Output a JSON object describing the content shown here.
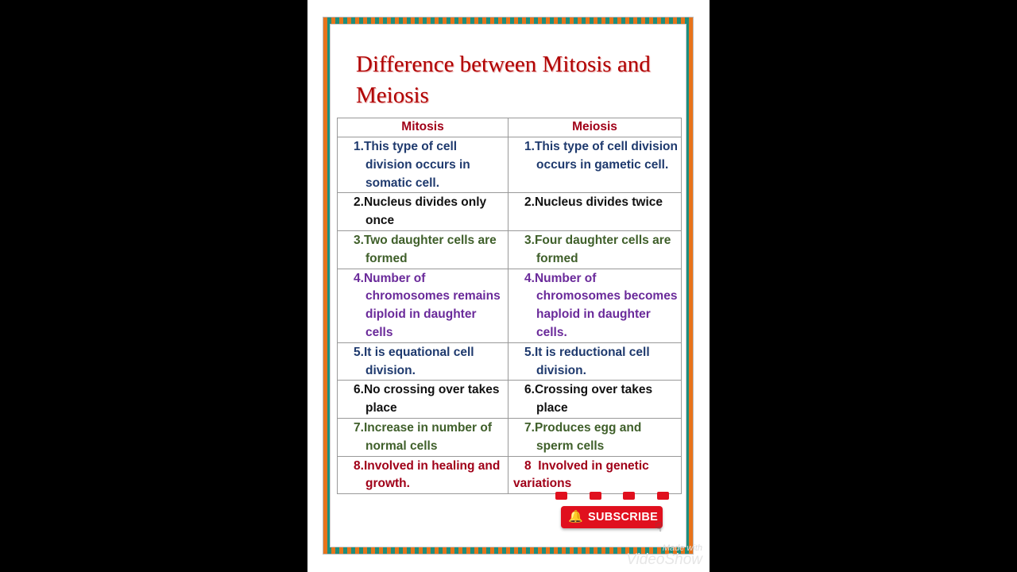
{
  "title": "Difference between Mitosis and Meiosis",
  "colors": {
    "title": "#b00000",
    "header": "#a00018",
    "navy": "#1f3a6e",
    "black": "#111111",
    "green": "#3f5f2a",
    "purple": "#6a2a9a",
    "red": "#a00018",
    "subscribe": "#e0101e"
  },
  "table": {
    "headers": [
      "Mitosis",
      "Meiosis"
    ],
    "rows": [
      {
        "color": "navy",
        "mitosis": {
          "num": "1.",
          "text": "This type of cell division occurs in somatic cell."
        },
        "meiosis": {
          "num": "1.",
          "text": "This type of cell division occurs in gametic cell."
        }
      },
      {
        "color": "black",
        "mitosis": {
          "num": "2.",
          "text": "Nucleus divides only once"
        },
        "meiosis": {
          "num": "2.",
          "text": "Nucleus divides twice"
        }
      },
      {
        "color": "green",
        "mitosis": {
          "num": "3.",
          "text": "Two daughter cells are formed"
        },
        "meiosis": {
          "num": "3.",
          "text": "Four daughter cells are formed"
        }
      },
      {
        "color": "purple",
        "mitosis": {
          "num": "4.",
          "text": "Number of chromosomes remains diploid in daughter cells"
        },
        "meiosis": {
          "num": "4.",
          "text": "Number of chromosomes becomes haploid in daughter cells."
        }
      },
      {
        "color": "navy",
        "mitosis": {
          "num": "5.",
          "text": "It is equational cell division."
        },
        "meiosis": {
          "num": "5.",
          "text": "It is reductional cell division."
        }
      },
      {
        "color": "black",
        "mitosis": {
          "num": "6.",
          "text": "No crossing over takes place"
        },
        "meiosis": {
          "num": "6.",
          "text": "Crossing over takes place"
        }
      },
      {
        "color": "green",
        "mitosis": {
          "num": "7.",
          "text": "Increase in number of normal cells"
        },
        "meiosis": {
          "num": "7.",
          "text": "Produces egg and sperm cells"
        }
      },
      {
        "color": "red",
        "mitosis": {
          "num": "8.",
          "text": "Involved in healing and growth."
        },
        "meiosis": {
          "num": "8  ",
          "text": "Involved in genetic variations"
        }
      }
    ]
  },
  "subscribe": {
    "label": "SUBSCRIBE",
    "icon": "bell-icon",
    "mini_icons": [
      "like-icon",
      "comment-icon",
      "share-icon",
      "notification-icon"
    ]
  },
  "watermark": {
    "line1": "Made with",
    "line2": "VideoShow"
  }
}
